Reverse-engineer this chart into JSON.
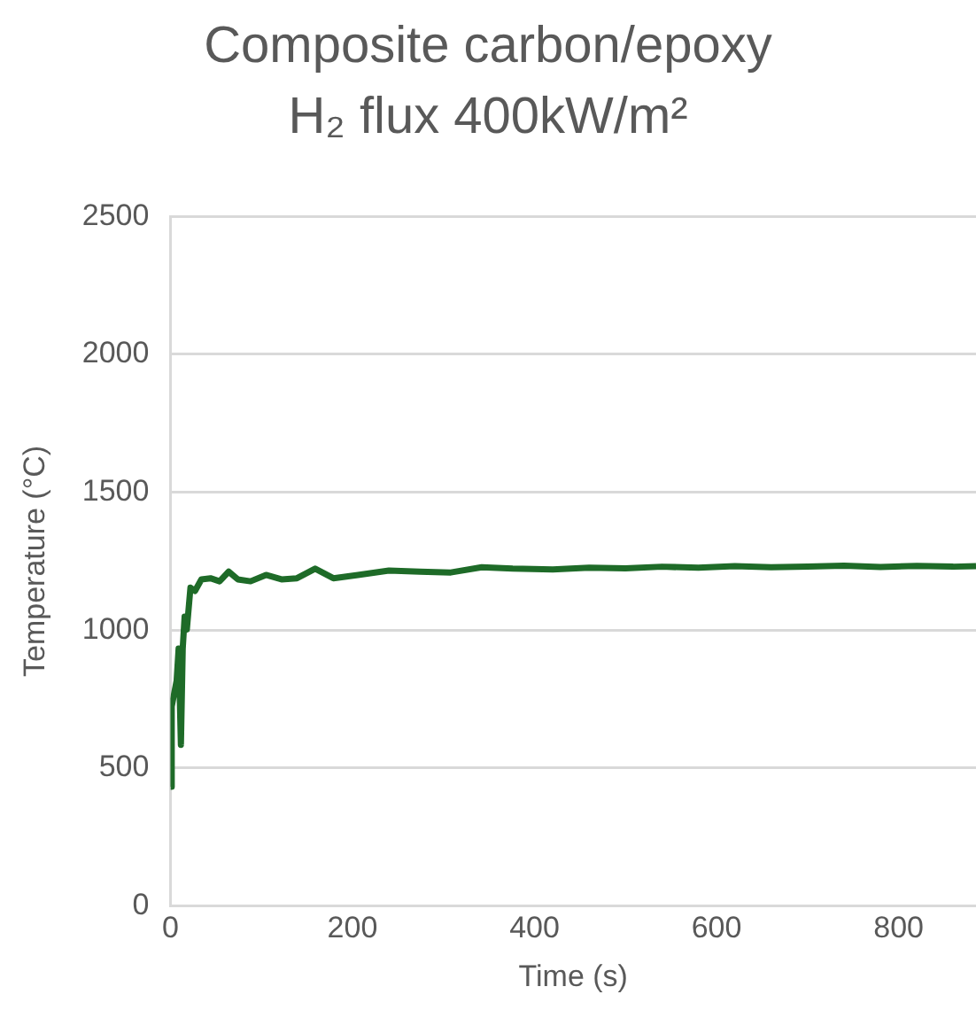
{
  "chart_data": {
    "type": "line",
    "title": "Composite carbon/epoxy",
    "subtitle": "H₂ flux 400kW/m²",
    "xlabel": "Time (s)",
    "ylabel": "Temperature (°C)",
    "xlim": [
      0,
      885
    ],
    "xticks": [
      0,
      200,
      400,
      600,
      800
    ],
    "ylim": [
      0,
      2500
    ],
    "yticks": [
      0,
      500,
      1000,
      1500,
      2000,
      2500
    ],
    "grid": "y",
    "legend": false,
    "marker": "none",
    "line_style": "solid",
    "series": [
      {
        "color": "#1e6b28",
        "x": [
          0,
          1.4,
          6.8,
          9,
          11.5,
          13.5,
          15.6,
          18,
          22,
          27,
          34,
          44,
          54,
          64,
          74,
          88,
          105,
          122,
          139,
          159,
          179,
          206,
          240,
          274,
          308,
          342,
          376,
          420,
          460,
          500,
          540,
          580,
          620,
          660,
          700,
          740,
          780,
          820,
          860,
          885
        ],
        "values": [
          432,
          723,
          816,
          933,
          584,
          933,
          1049,
          1002,
          1154,
          1142,
          1184,
          1188,
          1177,
          1212,
          1184,
          1177,
          1200,
          1184,
          1188,
          1223,
          1188,
          1200,
          1216,
          1212,
          1209,
          1228,
          1223,
          1220,
          1226,
          1224,
          1230,
          1226,
          1232,
          1228,
          1230,
          1234,
          1229,
          1233,
          1230,
          1232
        ]
      }
    ]
  }
}
